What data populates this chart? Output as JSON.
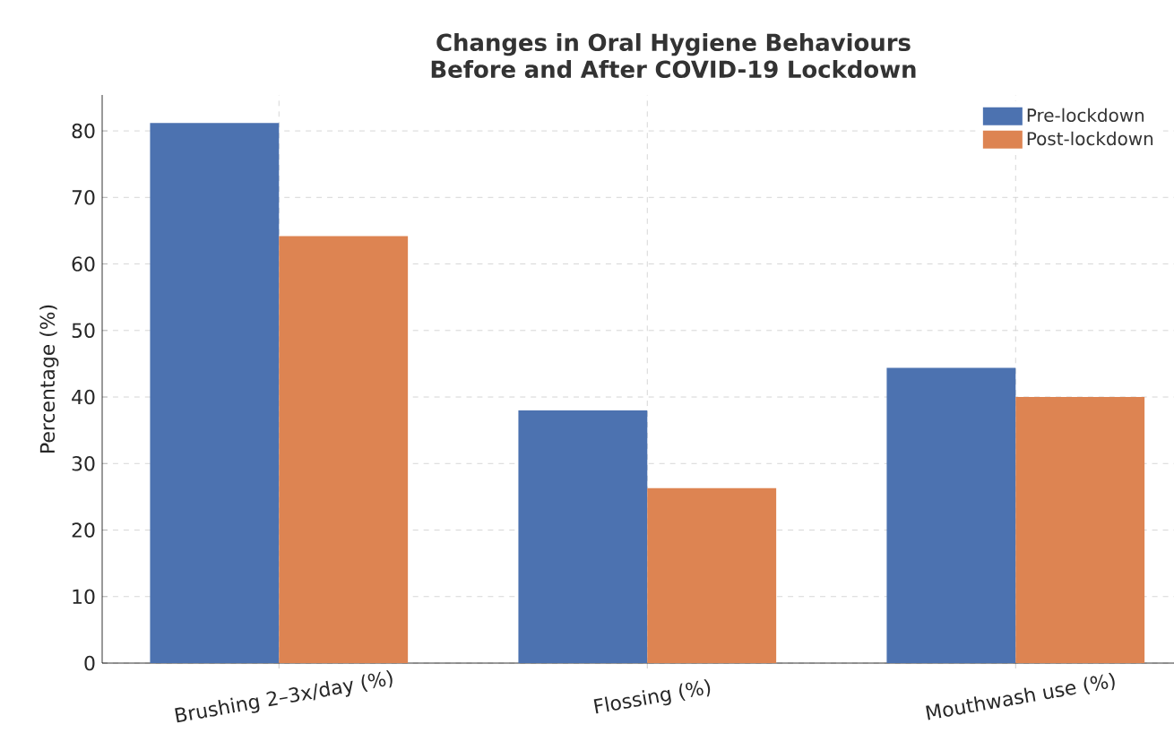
{
  "chart_data": {
    "type": "bar",
    "title": "Changes in Oral Hygiene Behaviours Before and After COVID-19 Lockdown",
    "ylabel": "Percentage (%)",
    "categories": [
      "Brushing 2–3x/day (%)",
      "Flossing (%)",
      "Mouthwash use (%)"
    ],
    "series": [
      {
        "name": "Pre-lockdown",
        "color": "#4c72b0",
        "values": [
          81.2,
          38.0,
          44.4
        ]
      },
      {
        "name": "Post-lockdown",
        "color": "#dd8452",
        "values": [
          64.2,
          26.3,
          40.0
        ]
      }
    ],
    "ylim": [
      0,
      85.4
    ],
    "yticks": [
      0,
      10,
      20,
      30,
      40,
      50,
      60,
      70,
      80
    ],
    "grid": true,
    "legend": "top right"
  }
}
